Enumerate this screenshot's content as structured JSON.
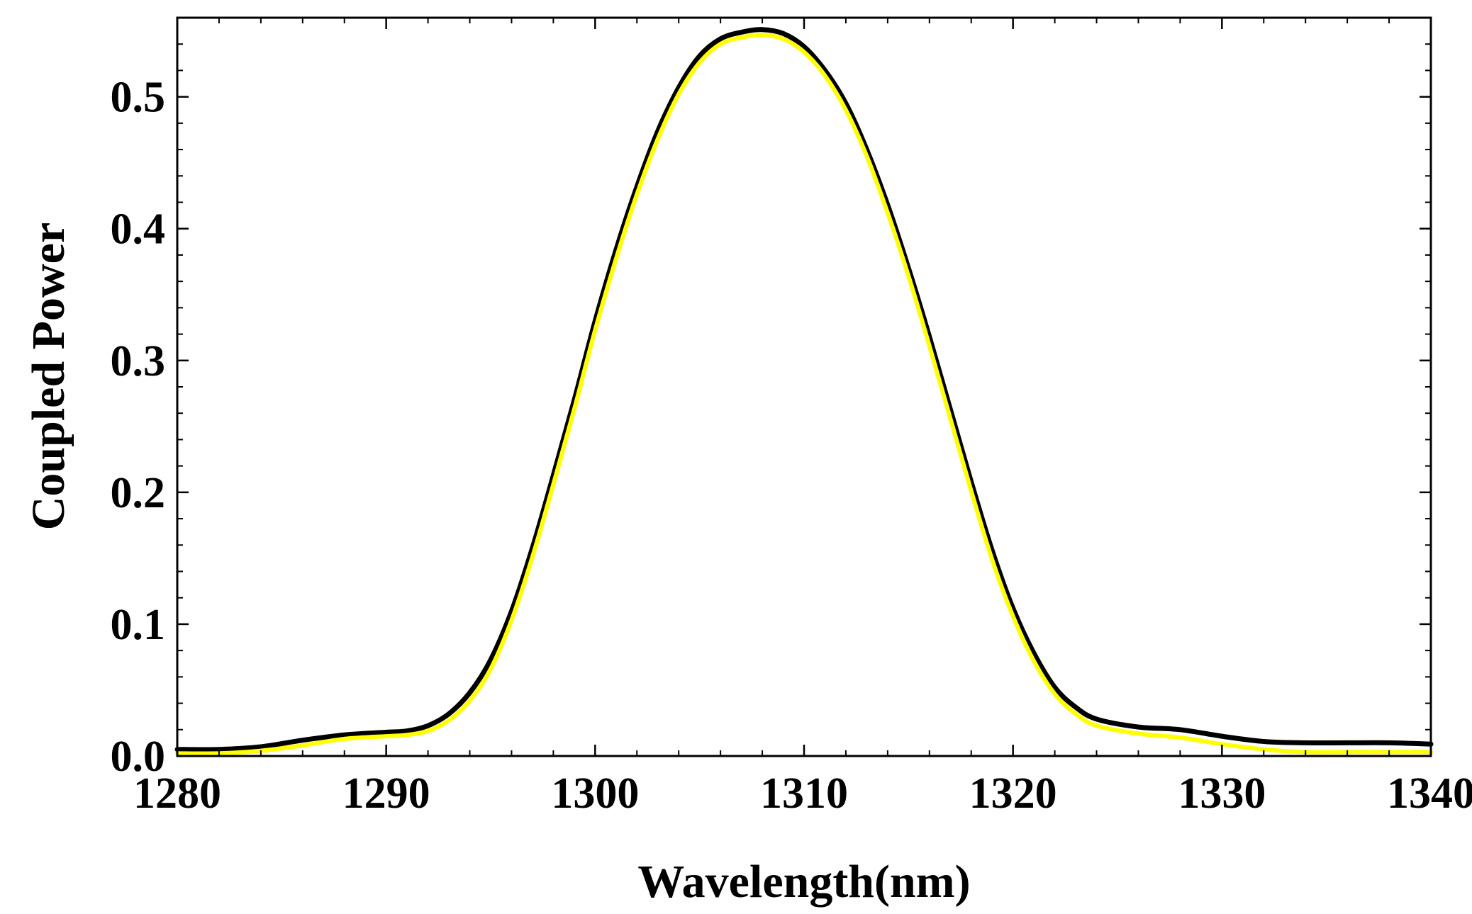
{
  "chart_data": {
    "type": "line",
    "title": "",
    "xlabel": "Wavelength(nm)",
    "ylabel": "Coupled Power",
    "xlim": [
      1280,
      1340
    ],
    "ylim": [
      0,
      0.56
    ],
    "xticks": [
      1280,
      1290,
      1300,
      1310,
      1320,
      1330,
      1340
    ],
    "xtick_labels": [
      "1280",
      "1290",
      "1300",
      "1310",
      "1320",
      "1330",
      "1340"
    ],
    "yticks": [
      0.0,
      0.1,
      0.2,
      0.3,
      0.4,
      0.5
    ],
    "ytick_labels": [
      "0.0",
      "0.1",
      "0.2",
      "0.3",
      "0.4",
      "0.5"
    ],
    "grid": false,
    "frame": "box",
    "series": [
      {
        "color": "#000000",
        "x": [
          1280,
          1282,
          1284,
          1286,
          1288,
          1290,
          1291,
          1292,
          1293,
          1294,
          1295,
          1296,
          1297,
          1298,
          1299,
          1300,
          1301,
          1302,
          1303,
          1304,
          1305,
          1306,
          1307,
          1308,
          1309,
          1310,
          1311,
          1312,
          1313,
          1314,
          1315,
          1316,
          1317,
          1318,
          1319,
          1320,
          1321,
          1322,
          1323,
          1324,
          1326,
          1328,
          1330,
          1332,
          1334,
          1336,
          1338,
          1340
        ],
        "y": [
          0.005,
          0.005,
          0.007,
          0.012,
          0.016,
          0.018,
          0.019,
          0.023,
          0.032,
          0.048,
          0.073,
          0.11,
          0.158,
          0.213,
          0.27,
          0.33,
          0.384,
          0.432,
          0.474,
          0.507,
          0.531,
          0.544,
          0.549,
          0.551,
          0.548,
          0.538,
          0.52,
          0.495,
          0.46,
          0.418,
          0.37,
          0.318,
          0.263,
          0.208,
          0.156,
          0.112,
          0.078,
          0.052,
          0.037,
          0.028,
          0.022,
          0.02,
          0.015,
          0.011,
          0.01,
          0.01,
          0.01,
          0.009
        ]
      },
      {
        "color": "#ffff00",
        "x": [
          1280,
          1282,
          1284,
          1286,
          1288,
          1290,
          1291,
          1292,
          1293,
          1294,
          1295,
          1296,
          1297,
          1298,
          1299,
          1300,
          1301,
          1302,
          1303,
          1304,
          1305,
          1306,
          1307,
          1308,
          1309,
          1310,
          1311,
          1312,
          1313,
          1314,
          1315,
          1316,
          1317,
          1318,
          1319,
          1320,
          1321,
          1322,
          1323,
          1324,
          1326,
          1328,
          1330,
          1332,
          1334,
          1336,
          1338,
          1340
        ],
        "y": [
          0.002,
          0.002,
          0.004,
          0.008,
          0.013,
          0.015,
          0.016,
          0.019,
          0.027,
          0.042,
          0.066,
          0.103,
          0.151,
          0.206,
          0.263,
          0.323,
          0.377,
          0.426,
          0.468,
          0.502,
          0.526,
          0.54,
          0.545,
          0.547,
          0.544,
          0.534,
          0.516,
          0.49,
          0.455,
          0.412,
          0.364,
          0.311,
          0.256,
          0.201,
          0.149,
          0.106,
          0.072,
          0.047,
          0.032,
          0.023,
          0.017,
          0.014,
          0.009,
          0.005,
          0.003,
          0.003,
          0.003,
          0.003
        ]
      }
    ]
  }
}
